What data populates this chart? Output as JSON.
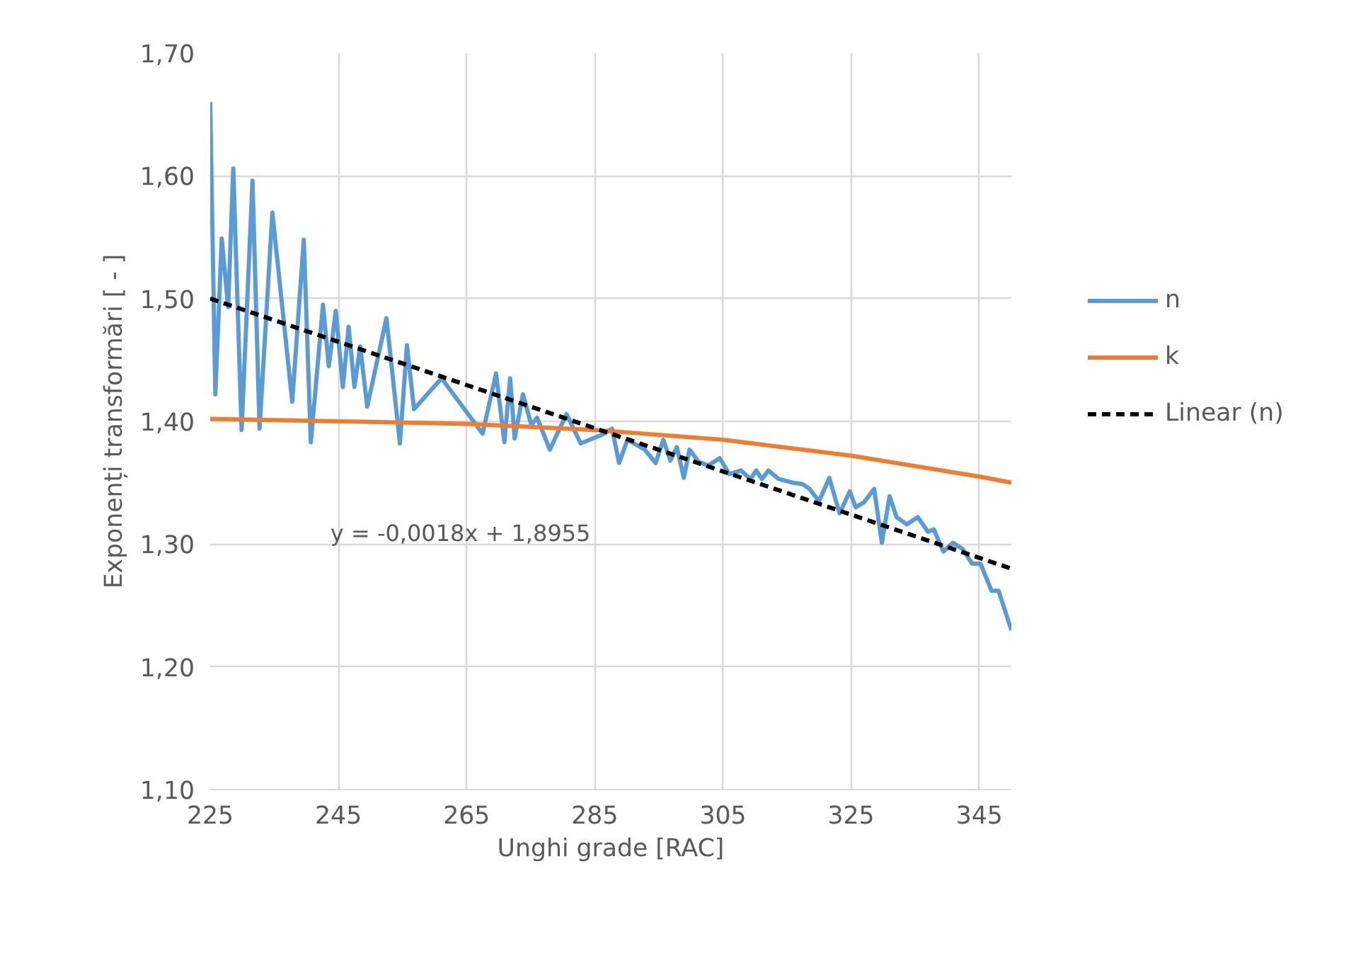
{
  "chart_data": {
    "type": "line",
    "xlabel": "Unghi grade [RAC]",
    "ylabel": "Exponenți transformări [ - ]",
    "xlim": [
      225,
      350
    ],
    "xticks": [
      225,
      245,
      265,
      285,
      305,
      325,
      345
    ],
    "ylim": [
      1.1,
      1.7
    ],
    "yticks": [
      {
        "value": 1.1,
        "label": "1,10"
      },
      {
        "value": 1.2,
        "label": "1,20"
      },
      {
        "value": 1.3,
        "label": "1,30"
      },
      {
        "value": 1.4,
        "label": "1,40"
      },
      {
        "value": 1.5,
        "label": "1,50"
      },
      {
        "value": 1.6,
        "label": "1,60"
      },
      {
        "value": 1.7,
        "label": "1,70"
      }
    ],
    "grid": true,
    "legend": "right",
    "marker": "none",
    "annotations": [
      "y = -0,0018x + 1,8955"
    ],
    "series": [
      {
        "name": "n",
        "color": "#5b9bd5",
        "line_style": "solid",
        "x": [
          225,
          225.8,
          226.8,
          227.8,
          228.6,
          229.9,
          231.6,
          232.7,
          234.7,
          237.8,
          239.6,
          240.7,
          242.6,
          243.5,
          244.6,
          245.7,
          246.6,
          247.5,
          248.4,
          249.5,
          252.5,
          254.6,
          255.7,
          256.8,
          261.1,
          267.5,
          269.6,
          270.9,
          271.8,
          272.5,
          273.8,
          275.1,
          276,
          278,
          280.6,
          282.8,
          286.1,
          287.7,
          288.8,
          290.1,
          292.8,
          294.5,
          295.7,
          296.8,
          297.8,
          298.9,
          299.8,
          301.2,
          302.7,
          304.5,
          306,
          307.8,
          309.3,
          310.2,
          311.1,
          312.1,
          313.7,
          315.9,
          317.4,
          318.5,
          320,
          321.6,
          323.2,
          324.8,
          325.7,
          327,
          328.6,
          329.8,
          331,
          332.1,
          333.7,
          335.4,
          337,
          337.9,
          339.4,
          340.9,
          342.4,
          343.9,
          345.2,
          346.9,
          348,
          350
        ],
        "values": [
          1.66,
          1.422,
          1.549,
          1.493,
          1.606,
          1.393,
          1.596,
          1.394,
          1.57,
          1.416,
          1.548,
          1.383,
          1.495,
          1.445,
          1.49,
          1.428,
          1.477,
          1.428,
          1.461,
          1.412,
          1.484,
          1.382,
          1.462,
          1.41,
          1.435,
          1.39,
          1.439,
          1.383,
          1.435,
          1.386,
          1.422,
          1.397,
          1.403,
          1.377,
          1.406,
          1.382,
          1.389,
          1.394,
          1.366,
          1.385,
          1.377,
          1.366,
          1.385,
          1.368,
          1.379,
          1.354,
          1.377,
          1.367,
          1.364,
          1.37,
          1.357,
          1.36,
          1.353,
          1.36,
          1.353,
          1.36,
          1.353,
          1.35,
          1.349,
          1.345,
          1.335,
          1.354,
          1.325,
          1.343,
          1.33,
          1.334,
          1.345,
          1.301,
          1.339,
          1.322,
          1.316,
          1.322,
          1.31,
          1.312,
          1.294,
          1.301,
          1.296,
          1.284,
          1.284,
          1.262,
          1.262,
          1.23
        ]
      },
      {
        "name": "k",
        "color": "#ed7d31",
        "line_style": "solid",
        "x": [
          225,
          245,
          265,
          285,
          305,
          325,
          345,
          350
        ],
        "values": [
          1.402,
          1.4,
          1.398,
          1.393,
          1.385,
          1.372,
          1.355,
          1.35
        ]
      },
      {
        "name": "Linear (n)",
        "color": "#000000",
        "line_style": "dashed",
        "x": [
          225,
          350
        ],
        "values": [
          1.5,
          1.28
        ]
      }
    ]
  }
}
